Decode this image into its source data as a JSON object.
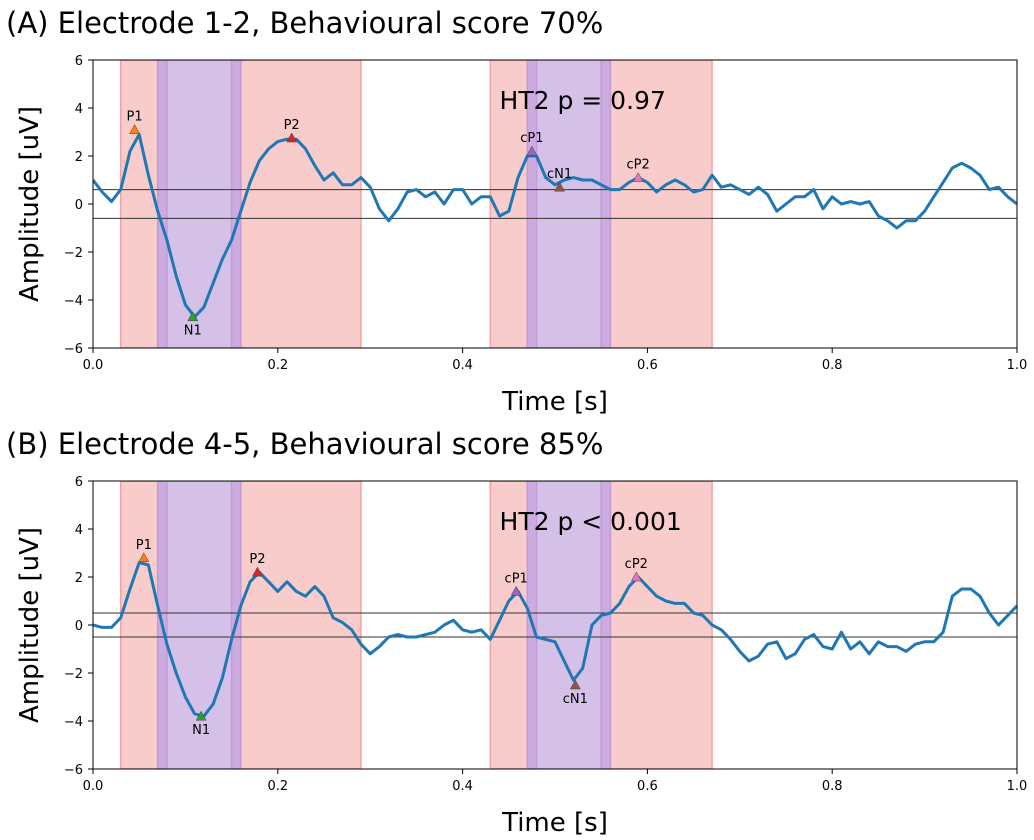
{
  "chart_data": [
    {
      "type": "line",
      "title": "(A) Electrode 1-2, Behavioural score 70%",
      "xlabel": "Time [s]",
      "ylabel": "Amplitude [uV]",
      "annotation": "HT2 p = 0.97",
      "xlim": [
        0,
        1
      ],
      "ylim": [
        -6,
        6
      ],
      "xticks": [
        {
          "value": 0,
          "label": "0.0"
        },
        0.2,
        0.4,
        0.6,
        0.8,
        {
          "value": 1,
          "label": "1.0"
        }
      ],
      "yticks": [
        {
          "value": -6,
          "label": "−6"
        },
        {
          "value": -4,
          "label": "−4"
        },
        {
          "value": -2,
          "label": "−2"
        },
        0,
        2,
        4,
        6
      ],
      "spans": [
        {
          "start": 0.03,
          "end": 0.29,
          "color": "#f4a3a3"
        },
        {
          "start": 0.07,
          "end": 0.16,
          "color": "#b8b8ff"
        },
        {
          "start": 0.07,
          "end": 0.08,
          "color": "#c49ad8"
        },
        {
          "start": 0.15,
          "end": 0.16,
          "color": "#c49ad8"
        },
        {
          "start": 0.43,
          "end": 0.67,
          "color": "#f4a3a3"
        },
        {
          "start": 0.47,
          "end": 0.56,
          "color": "#b8b8ff"
        },
        {
          "start": 0.47,
          "end": 0.48,
          "color": "#c49ad8"
        },
        {
          "start": 0.55,
          "end": 0.56,
          "color": "#c49ad8"
        }
      ],
      "hlines": [
        0.6,
        -0.6
      ],
      "peaks": [
        {
          "label": "P1",
          "x": 0.045,
          "y": 3.1,
          "color": "#ff7f0e"
        },
        {
          "label": "N1",
          "x": 0.108,
          "y": -4.7,
          "color": "#2ca02c"
        },
        {
          "label": "P2",
          "x": 0.215,
          "y": 2.75,
          "color": "#d62728"
        },
        {
          "label": "cP1",
          "x": 0.475,
          "y": 2.2,
          "color": "#9467bd"
        },
        {
          "label": "cN1",
          "x": 0.505,
          "y": 0.7,
          "color": "#8c564b"
        },
        {
          "label": "cP2",
          "x": 0.59,
          "y": 1.1,
          "color": "#e377c2"
        }
      ],
      "x": [
        0,
        0.01,
        0.02,
        0.03,
        0.04,
        0.05,
        0.06,
        0.07,
        0.08,
        0.09,
        0.1,
        0.11,
        0.12,
        0.13,
        0.14,
        0.15,
        0.16,
        0.17,
        0.18,
        0.19,
        0.2,
        0.21,
        0.22,
        0.23,
        0.24,
        0.25,
        0.26,
        0.27,
        0.28,
        0.29,
        0.3,
        0.31,
        0.32,
        0.33,
        0.34,
        0.35,
        0.36,
        0.37,
        0.38,
        0.39,
        0.4,
        0.41,
        0.42,
        0.43,
        0.44,
        0.45,
        0.46,
        0.47,
        0.48,
        0.49,
        0.5,
        0.51,
        0.52,
        0.53,
        0.54,
        0.55,
        0.56,
        0.57,
        0.58,
        0.59,
        0.6,
        0.61,
        0.62,
        0.63,
        0.64,
        0.65,
        0.66,
        0.67,
        0.68,
        0.69,
        0.7,
        0.71,
        0.72,
        0.73,
        0.74,
        0.75,
        0.76,
        0.77,
        0.78,
        0.79,
        0.8,
        0.81,
        0.82,
        0.83,
        0.84,
        0.85,
        0.86,
        0.87,
        0.88,
        0.89,
        0.9,
        0.91,
        0.92,
        0.93,
        0.94,
        0.95,
        0.96,
        0.97,
        0.98,
        0.99,
        1
      ],
      "series": [
        {
          "color": "#1f77b4",
          "values": [
            1.0,
            0.5,
            0.1,
            0.6,
            2.2,
            2.9,
            1.2,
            -0.3,
            -1.5,
            -3.0,
            -4.2,
            -4.7,
            -4.3,
            -3.3,
            -2.3,
            -1.5,
            -0.3,
            0.9,
            1.8,
            2.3,
            2.6,
            2.7,
            2.7,
            2.3,
            1.6,
            1.0,
            1.3,
            0.8,
            0.8,
            1.1,
            0.7,
            -0.2,
            -0.7,
            -0.2,
            0.5,
            0.6,
            0.3,
            0.5,
            0.0,
            0.6,
            0.6,
            0.0,
            0.3,
            0.3,
            -0.5,
            -0.3,
            1.1,
            2.0,
            2.0,
            1.1,
            0.8,
            1.0,
            1.1,
            1.0,
            1.0,
            0.8,
            0.6,
            0.6,
            0.9,
            1.1,
            0.9,
            0.5,
            0.8,
            1.0,
            0.8,
            0.5,
            0.6,
            1.2,
            0.7,
            0.8,
            0.6,
            0.4,
            0.7,
            0.4,
            -0.3,
            0.0,
            0.3,
            0.3,
            0.6,
            -0.2,
            0.3,
            0.0,
            0.1,
            0.0,
            0.1,
            -0.5,
            -0.7,
            -1.0,
            -0.7,
            -0.7,
            -0.3,
            0.3,
            0.9,
            1.5,
            1.7,
            1.5,
            1.2,
            0.6,
            0.7,
            0.3,
            0.0
          ]
        }
      ]
    },
    {
      "type": "line",
      "title": "(B) Electrode 4-5, Behavioural score 85%",
      "xlabel": "Time [s]",
      "ylabel": "Amplitude [uV]",
      "annotation": "HT2 p < 0.001",
      "xlim": [
        0,
        1
      ],
      "ylim": [
        -6,
        6
      ],
      "xticks": [
        {
          "value": 0,
          "label": "0.0"
        },
        0.2,
        0.4,
        0.6,
        0.8,
        {
          "value": 1,
          "label": "1.0"
        }
      ],
      "yticks": [
        {
          "value": -6,
          "label": "−6"
        },
        {
          "value": -4,
          "label": "−4"
        },
        {
          "value": -2,
          "label": "−2"
        },
        0,
        2,
        4,
        6
      ],
      "spans": [
        {
          "start": 0.03,
          "end": 0.29,
          "color": "#f4a3a3"
        },
        {
          "start": 0.07,
          "end": 0.16,
          "color": "#b8b8ff"
        },
        {
          "start": 0.07,
          "end": 0.08,
          "color": "#c49ad8"
        },
        {
          "start": 0.15,
          "end": 0.16,
          "color": "#c49ad8"
        },
        {
          "start": 0.43,
          "end": 0.67,
          "color": "#f4a3a3"
        },
        {
          "start": 0.47,
          "end": 0.56,
          "color": "#b8b8ff"
        },
        {
          "start": 0.47,
          "end": 0.48,
          "color": "#c49ad8"
        },
        {
          "start": 0.55,
          "end": 0.56,
          "color": "#c49ad8"
        }
      ],
      "hlines": [
        0.5,
        -0.5
      ],
      "peaks": [
        {
          "label": "P1",
          "x": 0.055,
          "y": 2.8,
          "color": "#ff7f0e"
        },
        {
          "label": "N1",
          "x": 0.117,
          "y": -3.8,
          "color": "#2ca02c"
        },
        {
          "label": "P2",
          "x": 0.178,
          "y": 2.2,
          "color": "#d62728"
        },
        {
          "label": "cP1",
          "x": 0.458,
          "y": 1.4,
          "color": "#9467bd"
        },
        {
          "label": "cN1",
          "x": 0.522,
          "y": -2.5,
          "color": "#8c564b"
        },
        {
          "label": "cP2",
          "x": 0.588,
          "y": 2.0,
          "color": "#e377c2"
        }
      ],
      "x": [
        0,
        0.01,
        0.02,
        0.03,
        0.04,
        0.05,
        0.06,
        0.07,
        0.08,
        0.09,
        0.1,
        0.11,
        0.12,
        0.13,
        0.14,
        0.15,
        0.16,
        0.17,
        0.18,
        0.19,
        0.2,
        0.21,
        0.22,
        0.23,
        0.24,
        0.25,
        0.26,
        0.27,
        0.28,
        0.29,
        0.3,
        0.31,
        0.32,
        0.33,
        0.34,
        0.35,
        0.36,
        0.37,
        0.38,
        0.39,
        0.4,
        0.41,
        0.42,
        0.43,
        0.44,
        0.45,
        0.46,
        0.47,
        0.48,
        0.49,
        0.5,
        0.51,
        0.52,
        0.53,
        0.54,
        0.55,
        0.56,
        0.57,
        0.58,
        0.59,
        0.6,
        0.61,
        0.62,
        0.63,
        0.64,
        0.65,
        0.66,
        0.67,
        0.68,
        0.69,
        0.7,
        0.71,
        0.72,
        0.73,
        0.74,
        0.75,
        0.76,
        0.77,
        0.78,
        0.79,
        0.8,
        0.81,
        0.82,
        0.83,
        0.84,
        0.85,
        0.86,
        0.87,
        0.88,
        0.89,
        0.9,
        0.91,
        0.92,
        0.93,
        0.94,
        0.95,
        0.96,
        0.97,
        0.98,
        0.99,
        1
      ],
      "series": [
        {
          "color": "#1f77b4",
          "values": [
            0.0,
            -0.1,
            -0.1,
            0.3,
            1.5,
            2.6,
            2.5,
            0.8,
            -0.8,
            -2.0,
            -3.0,
            -3.7,
            -3.8,
            -3.3,
            -2.2,
            -0.6,
            0.8,
            1.8,
            2.2,
            1.8,
            1.4,
            1.8,
            1.4,
            1.2,
            1.6,
            1.2,
            0.3,
            0.1,
            -0.2,
            -0.8,
            -1.2,
            -0.9,
            -0.5,
            -0.4,
            -0.5,
            -0.5,
            -0.4,
            -0.3,
            0.0,
            0.2,
            -0.2,
            -0.3,
            -0.2,
            -0.6,
            0.2,
            1.0,
            1.4,
            0.7,
            -0.5,
            -0.6,
            -0.7,
            -1.5,
            -2.3,
            -1.8,
            0.0,
            0.4,
            0.5,
            0.9,
            1.6,
            2.0,
            1.6,
            1.2,
            1.0,
            0.9,
            0.9,
            0.5,
            0.4,
            0.0,
            -0.2,
            -0.6,
            -1.1,
            -1.5,
            -1.3,
            -0.8,
            -0.7,
            -1.4,
            -1.2,
            -0.6,
            -0.4,
            -0.9,
            -1.0,
            -0.3,
            -1.0,
            -0.7,
            -1.2,
            -0.7,
            -0.9,
            -0.9,
            -1.1,
            -0.8,
            -0.7,
            -0.7,
            -0.3,
            1.2,
            1.5,
            1.5,
            1.2,
            0.5,
            0.0,
            0.4,
            0.8
          ]
        }
      ]
    }
  ]
}
